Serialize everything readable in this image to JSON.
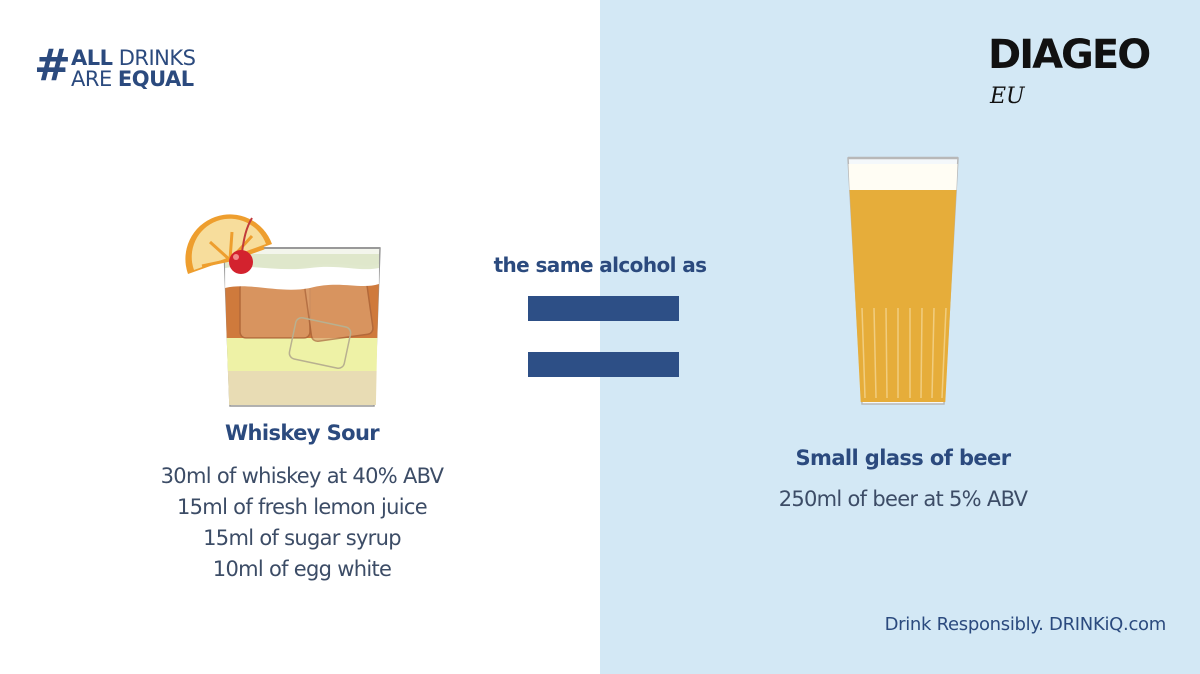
{
  "campaign": {
    "hash": "#",
    "line1_bold": "ALL",
    "line1_rest": "DRINKS",
    "line2_rest": "ARE",
    "line2_bold": "EQUAL"
  },
  "brand": {
    "name": "DIAGEO",
    "region": "EU"
  },
  "comparison": {
    "label": "the same alcohol as"
  },
  "left_drink": {
    "name": "Whiskey Sour",
    "ingredients": [
      "30ml of whiskey at 40% ABV",
      "15ml of fresh lemon juice",
      "15ml of sugar syrup",
      "10ml of egg white"
    ]
  },
  "right_drink": {
    "name": "Small glass of beer",
    "description": "250ml of beer at 5% ABV"
  },
  "footer": {
    "text": "Drink Responsibly. DRINKiQ.com"
  },
  "colors": {
    "left_background": "#ffffff",
    "right_background": "#d3e8f5",
    "brand_blue": "#2b4a7e",
    "equals_bar": "#2d4f86",
    "beer": "#e6ad3a",
    "whiskey": "#cf7a3c",
    "lemon_layer": "#eef2a6",
    "egg_white_layer": "#e8dcb4"
  },
  "icons": [
    "whiskey-sour-glass-icon",
    "orange-slice-icon",
    "cherry-icon",
    "beer-glass-icon",
    "equals-sign-icon"
  ]
}
